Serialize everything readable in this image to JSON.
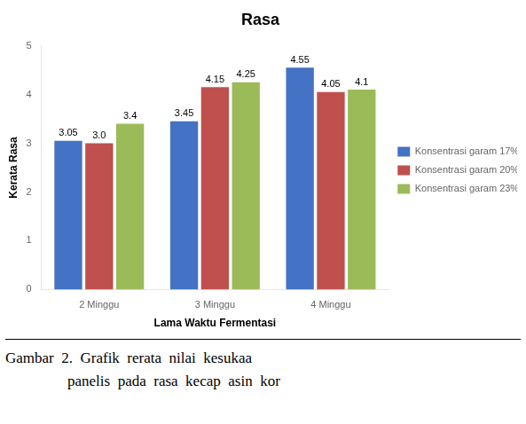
{
  "chart_data": {
    "type": "bar",
    "title": "Rasa",
    "xlabel": "Lama Waktu Fermentasi",
    "ylabel": "Kerata Rasa",
    "categories": [
      "2 Minggu",
      "3 Minggu",
      "4 Minggu"
    ],
    "series": [
      {
        "name": "Konsentrasi garam 17%",
        "color": "#4472C4",
        "values": [
          3.05,
          3.45,
          4.55
        ]
      },
      {
        "name": "Konsentrasi garam 20%",
        "color": "#C0504D",
        "values": [
          3.0,
          4.15,
          4.05
        ],
        "value_labels": [
          "3.0",
          "4.15",
          "4.05"
        ]
      },
      {
        "name": "Konsentrasi garam 23%",
        "color": "#9BBB59",
        "values": [
          3.4,
          4.25,
          4.1
        ],
        "value_labels": [
          "3.4",
          "4.25",
          "4.1"
        ]
      }
    ],
    "ylim": [
      0,
      5
    ],
    "yticks": [
      0,
      1,
      2,
      3,
      4,
      5
    ],
    "grid": false,
    "legend": "right",
    "data_labels": true,
    "annotations": [
      "Gambar  2.  Grafik  rerata  nilai  kesukaa",
      "panelis  pada  rasa  kecap  asin  kor"
    ]
  }
}
